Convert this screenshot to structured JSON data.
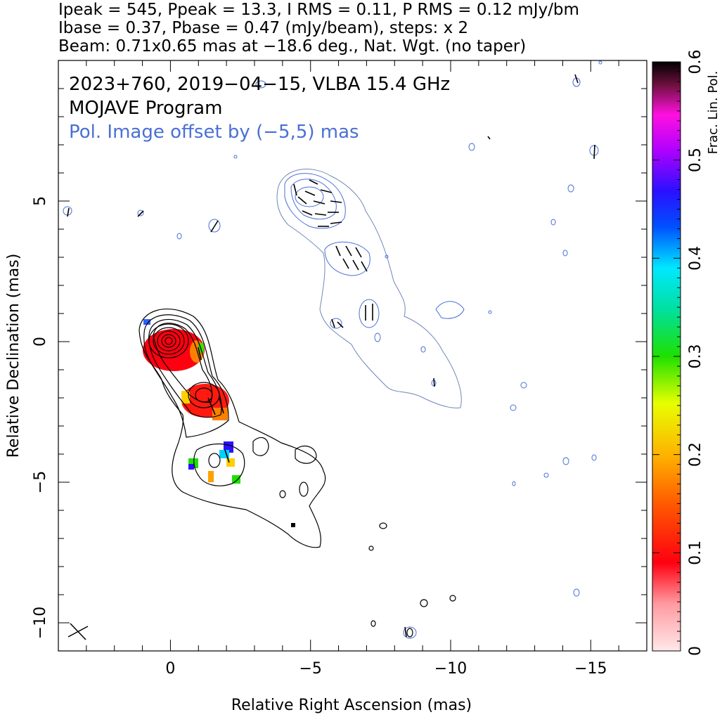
{
  "header": {
    "line1": "Ipeak = 545, Ppeak = 13.3, I RMS = 0.11, P RMS = 0.12 mJy/bm",
    "line2": "Ibase = 0.37, Pbase = 0.47 (mJy/beam), steps: x 2",
    "line3": "Beam: 0.71x0.65 mas at −18.6 deg., Nat. Wgt. (no taper)"
  },
  "plot_labels": {
    "source_line": "2023+760, 2019−04−15, VLBA 15.4 GHz",
    "program_line": "MOJAVE Program",
    "offset_line": "Pol. Image offset by (−5,5) mas"
  },
  "colors": {
    "total_intensity_contour": "#000000",
    "polarization_contour": "#4a6fd6",
    "evpa_ticks": "#000000",
    "offset_text": "#4a6fd6"
  },
  "chart_data": {
    "type": "heatmap",
    "title": "",
    "xlabel": "Relative Right Ascension (mas)",
    "ylabel": "Relative Declination (mas)",
    "xlim": [
      4,
      -17
    ],
    "ylim": [
      -11,
      10
    ],
    "x_ticks": [
      0,
      -5,
      -10,
      -15
    ],
    "x_tick_labels": [
      "0",
      "−5",
      "−10",
      "−15"
    ],
    "y_ticks": [
      -10,
      -5,
      0,
      5
    ],
    "y_tick_labels": [
      "−10",
      "−5",
      "0",
      "5"
    ],
    "colorbar": {
      "label": "Frac. Lin. Pol.",
      "range": [
        0,
        0.6
      ],
      "ticks": [
        0,
        0.1,
        0.2,
        0.3,
        0.4,
        0.5,
        0.6
      ],
      "tick_labels": [
        "0",
        "0.1",
        "0.2",
        "0.3",
        "0.4",
        "0.5",
        "0.6"
      ]
    },
    "total_intensity_contours": {
      "core": [
        0,
        0
      ],
      "peak": 545,
      "base": 0.37,
      "step_factor": 2
    },
    "fractional_polarization_regions": [
      {
        "x": 0.1,
        "y": -0.4,
        "value": 0.08
      },
      {
        "x": -1.3,
        "y": -2.0,
        "value": 0.12
      },
      {
        "x": -2.1,
        "y": -4.2,
        "value": 0.4
      },
      {
        "x": -0.9,
        "y": -4.4,
        "value": 0.42
      }
    ],
    "beam": {
      "major_mas": 0.71,
      "minor_mas": 0.65,
      "pa_deg": -18.6
    }
  }
}
